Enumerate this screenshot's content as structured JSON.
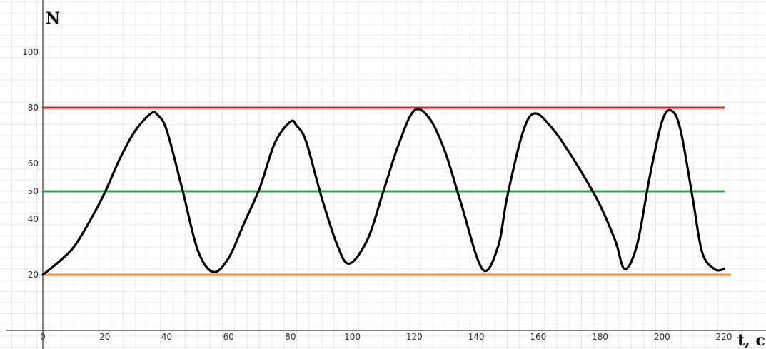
{
  "chart_data": {
    "type": "line",
    "ylabel": "N",
    "xlabel": "t, c",
    "xlim": [
      0,
      220
    ],
    "ylim": [
      0,
      115
    ],
    "grid": true,
    "x_ticks": [
      0,
      20,
      40,
      60,
      80,
      100,
      120,
      140,
      160,
      180,
      200,
      220
    ],
    "y_ticks": [
      20,
      40,
      50,
      60,
      80,
      100
    ],
    "series": [
      {
        "color": "#000000",
        "x": [
          0,
          5,
          10,
          15,
          20,
          25,
          30,
          35,
          37,
          40,
          45,
          50,
          55,
          60,
          65,
          70,
          75,
          80,
          82,
          85,
          90,
          95,
          99,
          105,
          110,
          115,
          120,
          125,
          130,
          135,
          142,
          147,
          150,
          155,
          159,
          165,
          170,
          175,
          180,
          185,
          188,
          192,
          196,
          200,
          203,
          206,
          210,
          213,
          217,
          220
        ],
        "y": [
          20,
          24.5,
          30,
          39,
          49.5,
          62,
          72,
          78,
          77.5,
          72,
          51,
          29,
          21,
          26,
          38.5,
          51,
          67.5,
          75,
          73.5,
          68,
          48,
          31,
          24,
          33,
          50,
          67,
          79,
          76,
          64,
          46,
          22,
          30,
          48,
          71,
          78,
          72,
          64,
          55,
          45,
          32,
          22,
          31,
          55,
          75,
          79,
          72,
          47,
          28,
          22,
          22
        ]
      },
      {
        "color": "#e02020",
        "x": [
          0,
          220
        ],
        "y": [
          80,
          80
        ]
      },
      {
        "color": "#22aa44",
        "x": [
          0,
          220
        ],
        "y": [
          50,
          50
        ]
      },
      {
        "color": "#ff8833",
        "x": [
          0,
          222
        ],
        "y": [
          20,
          20
        ]
      }
    ]
  }
}
